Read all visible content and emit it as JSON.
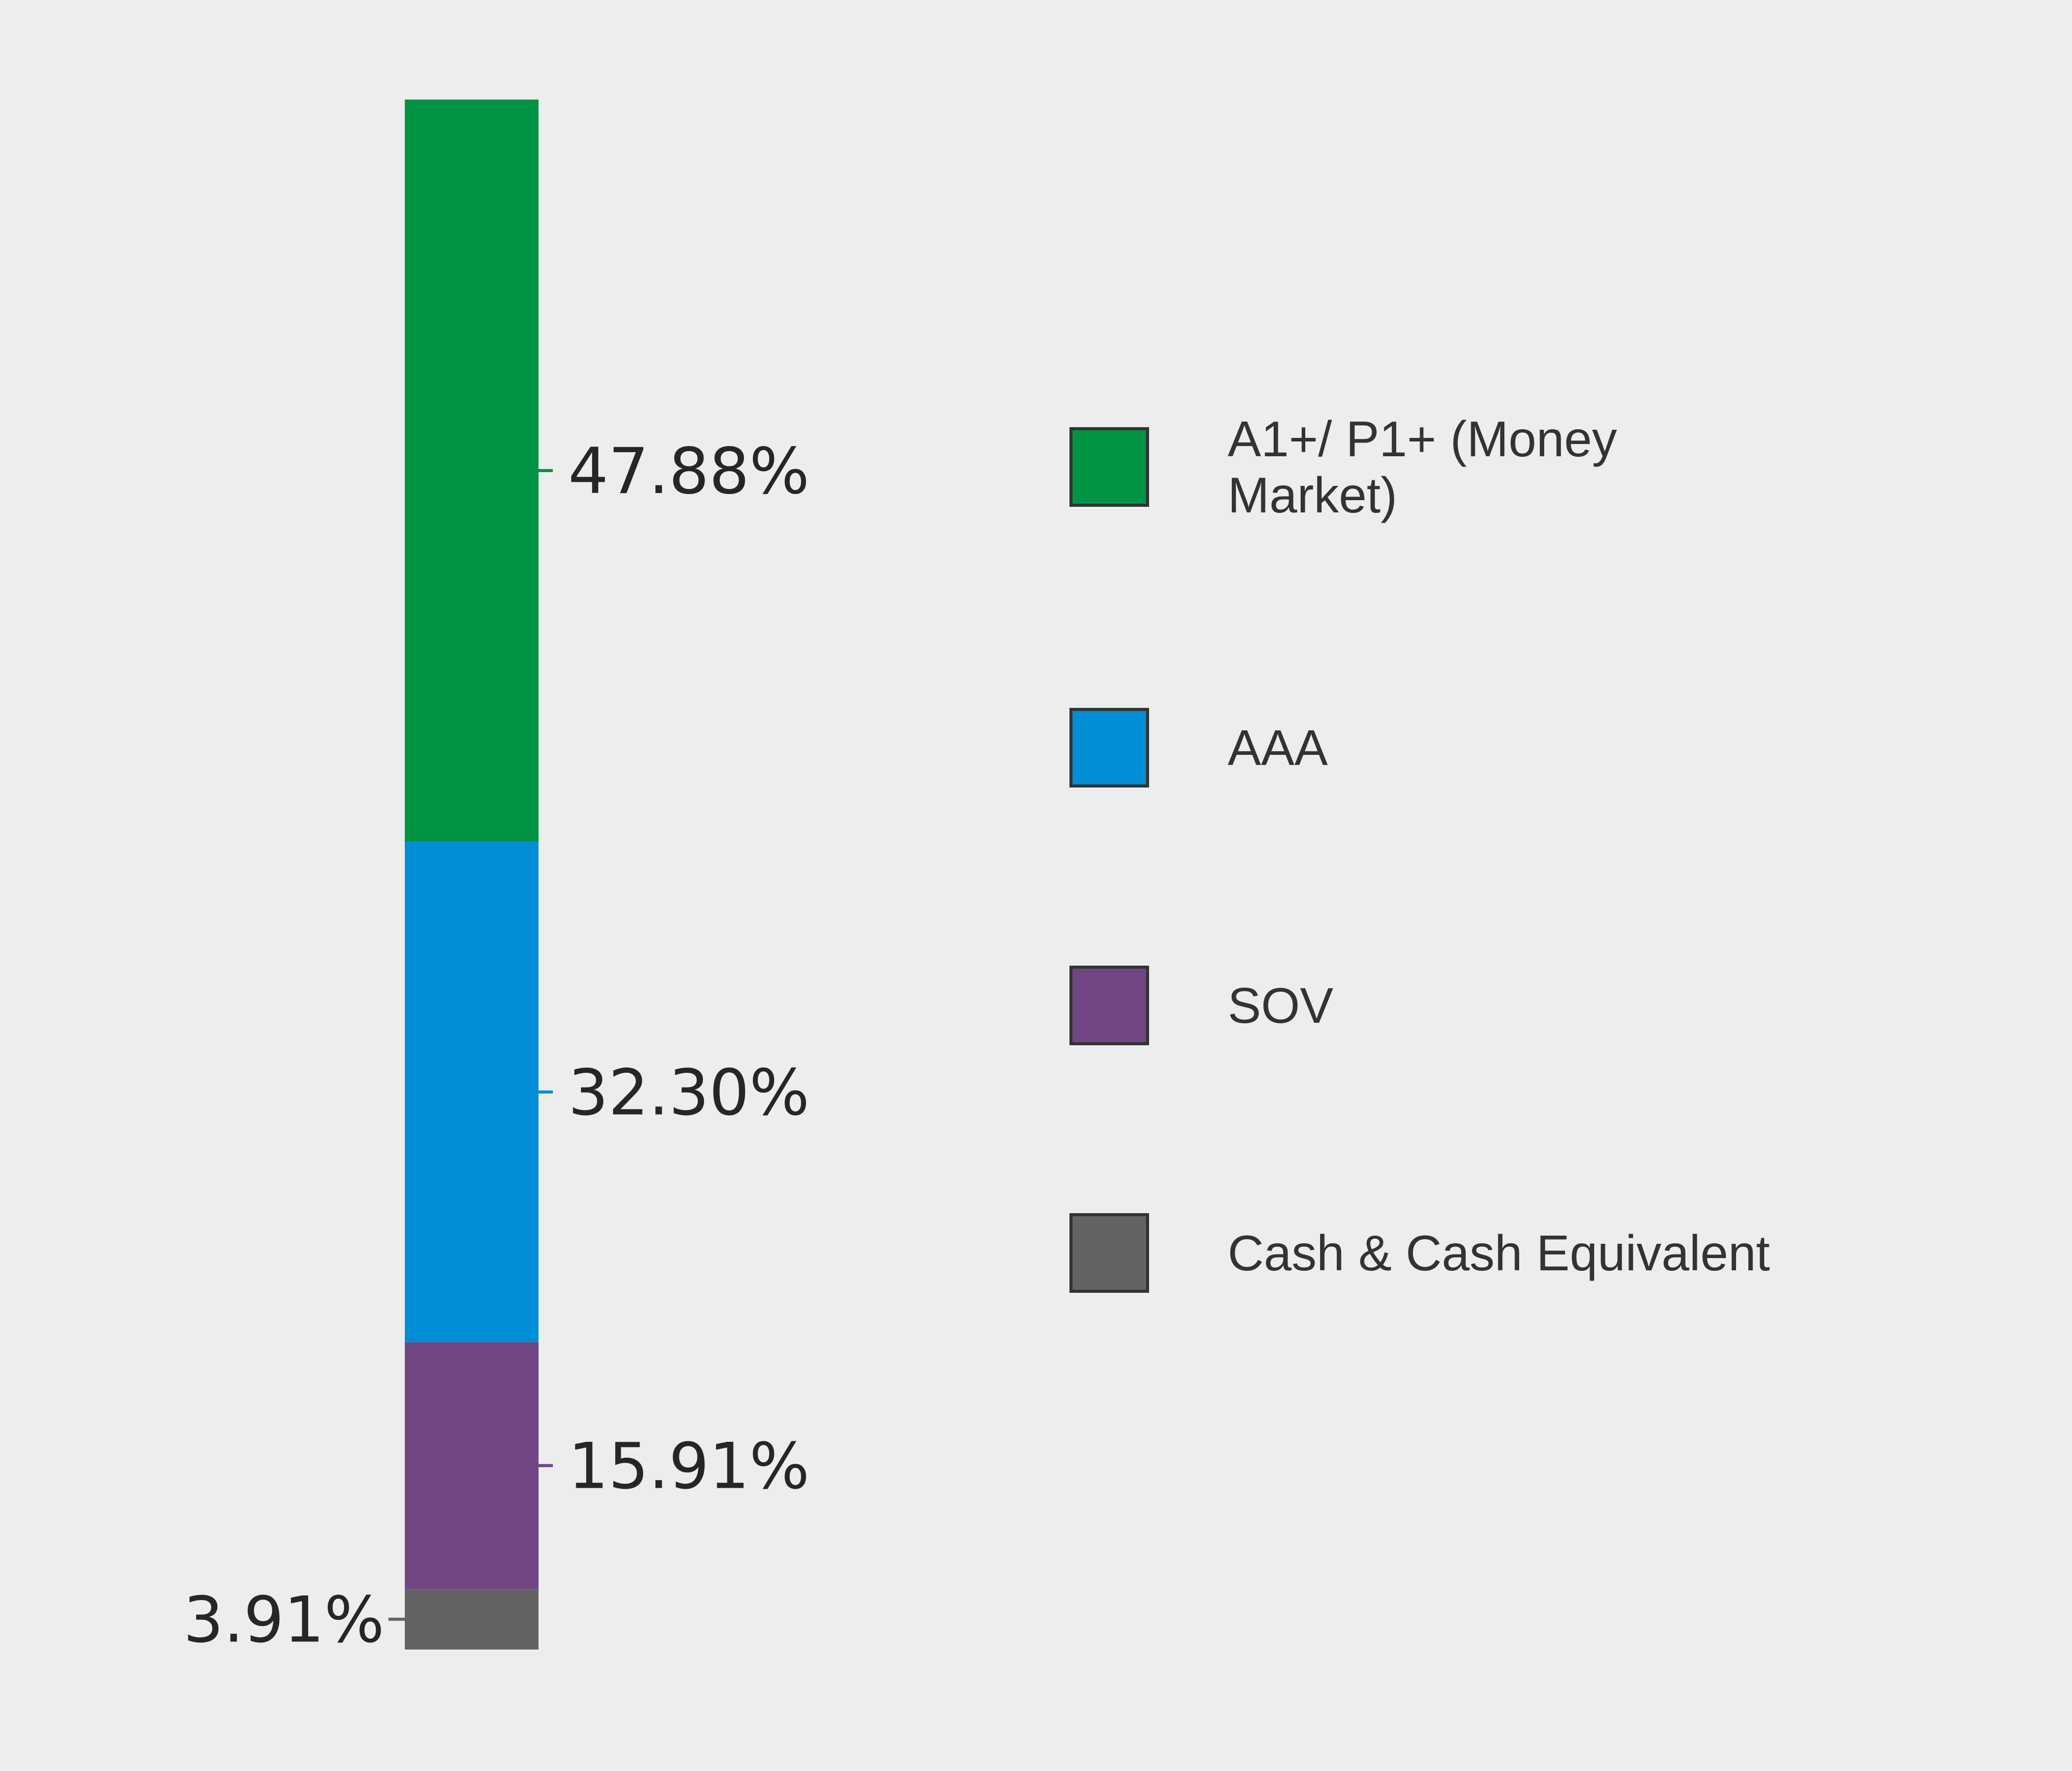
{
  "chart_data": {
    "type": "bar",
    "stacked": true,
    "orientation": "vertical",
    "ylim": [
      0,
      100
    ],
    "series": [
      {
        "name": "A1+/ P1+ (Money Market)",
        "value": 47.88,
        "label": "47.88%",
        "color": "#009444",
        "label_side": "right"
      },
      {
        "name": "AAA",
        "value": 32.3,
        "label": "32.30%",
        "color": "#008ed6",
        "label_side": "right"
      },
      {
        "name": "SOV",
        "value": 15.91,
        "label": "15.91%",
        "color": "#704684",
        "label_side": "right"
      },
      {
        "name": "Cash & Cash Equivalent",
        "value": 3.91,
        "label": "3.91%",
        "color": "#636363",
        "label_side": "left"
      }
    ],
    "legend": {
      "placement": "right",
      "items": [
        {
          "lines": [
            "A1+/ P1+ (Money",
            "Market)"
          ],
          "color": "#009444"
        },
        {
          "lines": [
            "AAA"
          ],
          "color": "#008ed6"
        },
        {
          "lines": [
            "SOV"
          ],
          "color": "#704684"
        },
        {
          "lines": [
            "Cash & Cash Equivalent"
          ],
          "color": "#636363"
        }
      ]
    }
  }
}
